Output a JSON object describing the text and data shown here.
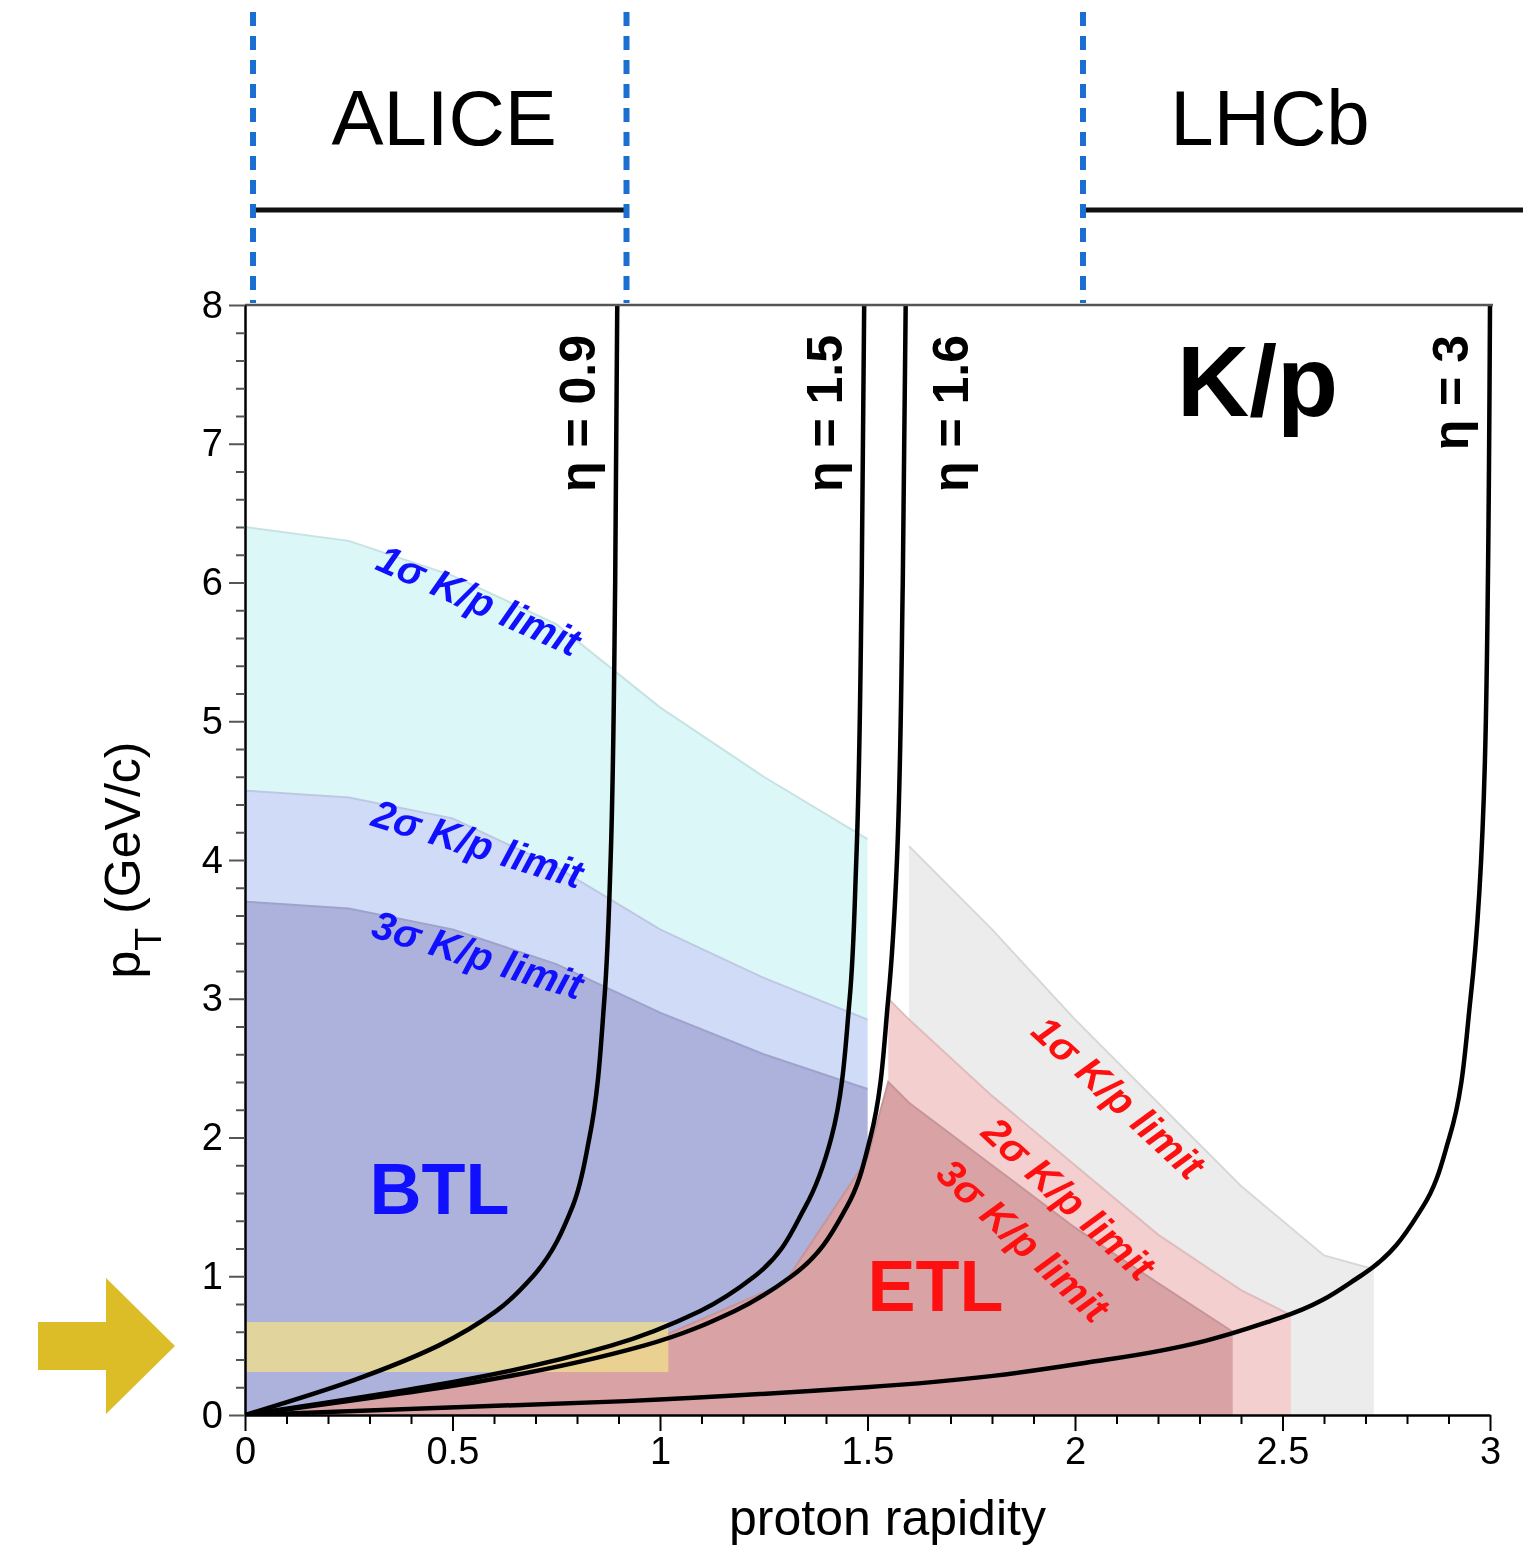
{
  "chart_data": {
    "type": "area",
    "title": "K/p",
    "xlabel": "proton rapidity",
    "ylabel": "p$_{T}$ (GeV/c)",
    "xlim": [
      0,
      3
    ],
    "ylim": [
      0,
      8
    ],
    "xticks": [
      0,
      {
        "value": 0.1,
        "label": null
      },
      {
        "value": 0.2,
        "label": null
      },
      {
        "value": 0.3,
        "label": null
      },
      {
        "value": 0.4,
        "label": null
      },
      0.5,
      {
        "value": 0.6,
        "label": null
      },
      {
        "value": 0.7,
        "label": null
      },
      {
        "value": 0.8,
        "label": null
      },
      {
        "value": 0.9,
        "label": null
      },
      1,
      {
        "value": 1.1,
        "label": null
      },
      {
        "value": 1.2,
        "label": null
      },
      {
        "value": 1.3,
        "label": null
      },
      {
        "value": 1.4,
        "label": null
      },
      1.5,
      {
        "value": 1.6,
        "label": null
      },
      {
        "value": 1.7,
        "label": null
      },
      {
        "value": 1.8,
        "label": null
      },
      {
        "value": 1.9,
        "label": null
      },
      2,
      {
        "value": 2.1,
        "label": null
      },
      {
        "value": 2.2,
        "label": null
      },
      {
        "value": 2.3,
        "label": null
      },
      {
        "value": 2.4,
        "label": null
      },
      2.5,
      {
        "value": 2.6,
        "label": null
      },
      {
        "value": 2.7,
        "label": null
      },
      {
        "value": 2.8,
        "label": null
      },
      {
        "value": 2.9,
        "label": null
      },
      3
    ],
    "yticks": [
      0,
      {
        "value": 0.2,
        "label": null
      },
      {
        "value": 0.4,
        "label": null
      },
      {
        "value": 0.6,
        "label": null
      },
      {
        "value": 0.8,
        "label": null
      },
      1,
      {
        "value": 1.2,
        "label": null
      },
      {
        "value": 1.4,
        "label": null
      },
      {
        "value": 1.6,
        "label": null
      },
      {
        "value": 1.8,
        "label": null
      },
      2,
      {
        "value": 2.2,
        "label": null
      },
      {
        "value": 2.4,
        "label": null
      },
      {
        "value": 2.6,
        "label": null
      },
      {
        "value": 2.8,
        "label": null
      },
      3,
      {
        "value": 3.2,
        "label": null
      },
      {
        "value": 3.4,
        "label": null
      },
      {
        "value": 3.6,
        "label": null
      },
      {
        "value": 3.8,
        "label": null
      },
      4,
      {
        "value": 4.2,
        "label": null
      },
      {
        "value": 4.4,
        "label": null
      },
      {
        "value": 4.6,
        "label": null
      },
      {
        "value": 4.8,
        "label": null
      },
      5,
      {
        "value": 5.2,
        "label": null
      },
      {
        "value": 5.4,
        "label": null
      },
      {
        "value": 5.6,
        "label": null
      },
      {
        "value": 5.8,
        "label": null
      },
      6,
      {
        "value": 6.2,
        "label": null
      },
      {
        "value": 6.4,
        "label": null
      },
      {
        "value": 6.6,
        "label": null
      },
      {
        "value": 6.8,
        "label": null
      },
      7,
      {
        "value": 7.2,
        "label": null
      },
      {
        "value": 7.4,
        "label": null
      },
      {
        "value": 7.6,
        "label": null
      },
      {
        "value": 7.8,
        "label": null
      },
      8
    ],
    "grid": false,
    "series": [
      {
        "color": "#dbf7f7",
        "x": [
          0,
          0.25,
          0.5,
          0.75,
          1,
          1.25,
          1.5
        ],
        "values": [
          6.4,
          6.3,
          6.05,
          5.7,
          5.1,
          4.6,
          4.15
        ]
      },
      {
        "color": "#d0dbf8",
        "x": [
          0,
          0.25,
          0.5,
          0.75,
          1,
          1.25,
          1.5
        ],
        "values": [
          4.5,
          4.45,
          4.3,
          3.95,
          3.5,
          3.15,
          2.85
        ]
      },
      {
        "color": "#adb2dc",
        "x": [
          0,
          0.25,
          0.5,
          0.75,
          1,
          1.25,
          1.5
        ],
        "values": [
          3.7,
          3.65,
          3.5,
          3.25,
          2.9,
          2.6,
          2.35
        ]
      },
      {
        "color": "#ececec",
        "x": [
          1.6,
          1.8,
          2,
          2.2,
          2.4,
          2.6,
          2.72
        ],
        "values": [
          4.1,
          3.5,
          2.85,
          2.25,
          1.65,
          1.15,
          1.05
        ]
      },
      {
        "color": "#f4cfcf",
        "x": [
          1.55,
          1.6,
          1.8,
          2,
          2.2,
          2.4,
          2.52
        ],
        "values": [
          3,
          2.85,
          2.3,
          1.8,
          1.3,
          0.9,
          0.72
        ]
      },
      {
        "color": "#d9a3a6",
        "x": [
          0,
          0.5,
          1,
          1.3,
          1.5,
          1.55,
          1.6,
          1.8,
          2,
          2.2,
          2.38
        ],
        "values": [
          0,
          0.21,
          0.56,
          0.95,
          1.85,
          2.4,
          2.25,
          1.8,
          1.35,
          0.95,
          0.6
        ]
      },
      {
        "type": "line",
        "color": "#eedc8c",
        "x": [
          0,
          1.02
        ],
        "values": [
          null,
          null
        ],
        "lower": [
          0.31,
          0.31
        ],
        "upper": [
          0.67,
          0.67
        ]
      },
      {
        "type": "line",
        "name": "η = 0.9",
        "color": "#000000",
        "x": [
          0,
          0.261,
          0.466,
          0.606,
          0.694,
          0.789,
          0.83,
          0.866,
          0.881,
          0.892,
          0.897
        ],
        "values": [
          0,
          0.25,
          0.5,
          0.75,
          1,
          1.5,
          2,
          3,
          4,
          6,
          8
        ]
      },
      {
        "type": "line",
        "name": "η = 1.5",
        "color": "#000000",
        "x": [
          0,
          0.524,
          0.882,
          1.097,
          1.228,
          1.35,
          1.413,
          1.457,
          1.473,
          1.486,
          1.492
        ],
        "values": [
          0,
          0.25,
          0.5,
          0.75,
          1,
          1.5,
          2,
          3,
          4,
          6,
          8
        ]
      },
      {
        "type": "line",
        "name": "η = 1.6",
        "color": "#000000",
        "x": [
          0,
          0.581,
          0.961,
          1.18,
          1.317,
          1.45,
          1.507,
          1.55,
          1.571,
          1.585,
          1.592
        ],
        "values": [
          0,
          0.25,
          0.5,
          0.75,
          1,
          1.5,
          2,
          3,
          4,
          6,
          8
        ]
      },
      {
        "type": "line",
        "name": "η = 3",
        "color": "#000000",
        "x": [
          0,
          0.918,
          1.497,
          2.078,
          2.494,
          2.687,
          2.838,
          2.902,
          2.953,
          2.99,
          3
        ],
        "values": [
          0,
          0.1,
          0.2,
          0.4,
          0.7,
          1,
          1.5,
          2,
          3,
          5,
          8
        ]
      }
    ],
    "annotations": [
      "ALICE",
      "LHCb",
      "1σ K/p limit",
      "2σ K/p limit",
      "3σ K/p limit",
      "1σ K/p limit",
      "2σ K/p limit",
      "3σ K/p limit",
      "BTL",
      "ETL"
    ]
  }
}
